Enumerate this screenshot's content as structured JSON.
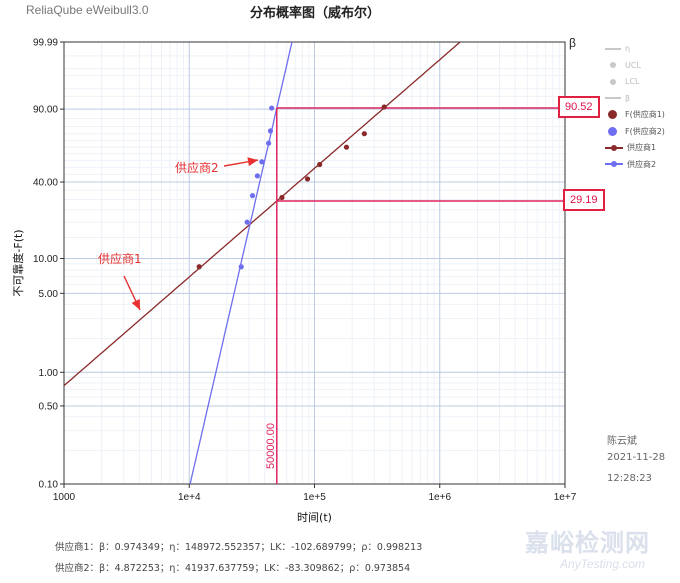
{
  "app": {
    "title": "ReliaQube eWeibull3.0"
  },
  "colors": {
    "supplier1": "#8b2a2a",
    "supplier2": "#6e6ef0",
    "marker": "#e0245e",
    "muted": "#c8c8c8"
  },
  "chart_data": {
    "type": "scatter",
    "title": "分布概率图（威布尔）",
    "xlabel": "时间(t)",
    "ylabel": "不可靠度-F(t)",
    "right_axis_label": "β",
    "x_scale": "log",
    "y_scale": "weibull",
    "xlim": [
      1000,
      10000000
    ],
    "ylim": [
      0.1,
      99.99
    ],
    "x_ticks": [
      {
        "value": 1000,
        "label": "1000"
      },
      {
        "value": 10000,
        "label": "1e+4"
      },
      {
        "value": 100000,
        "label": "1e+5"
      },
      {
        "value": 1000000,
        "label": "1e+6"
      },
      {
        "value": 10000000,
        "label": "1e+7"
      }
    ],
    "y_ticks": [
      {
        "value": 0.1,
        "label": "0.10"
      },
      {
        "value": 0.5,
        "label": "0.50"
      },
      {
        "value": 1,
        "label": "1.00"
      },
      {
        "value": 5,
        "label": "5.00"
      },
      {
        "value": 10,
        "label": "10.00"
      },
      {
        "value": 40,
        "label": "40.00"
      },
      {
        "value": 90,
        "label": "90.00"
      },
      {
        "value": 99.99,
        "label": "99.99"
      }
    ],
    "grid": true,
    "series": [
      {
        "name": "供应商1",
        "points_label": "F(供应商1)",
        "color": "#8b2a2a",
        "beta": 0.974349,
        "eta": 148972.552357,
        "points": [
          [
            12000,
            8.5
          ],
          [
            55000,
            31
          ],
          [
            88000,
            42
          ],
          [
            110000,
            52
          ],
          [
            180000,
            65
          ],
          [
            250000,
            75
          ],
          [
            360000,
            91
          ]
        ]
      },
      {
        "name": "供应商2",
        "points_label": "F(供应商2)",
        "color": "#6e6ef0",
        "beta": 4.872253,
        "eta": 41937.637759,
        "points": [
          [
            26000,
            8.5
          ],
          [
            29000,
            20
          ],
          [
            32000,
            32
          ],
          [
            35000,
            44
          ],
          [
            38000,
            54
          ],
          [
            43000,
            68
          ],
          [
            44500,
            77
          ],
          [
            45500,
            90.5
          ]
        ]
      }
    ],
    "marker": {
      "x": 50000,
      "x_label": "50000.00",
      "y_values": [
        90.52,
        29.19
      ],
      "y_labels": [
        "90.52",
        "29.19"
      ]
    },
    "annotations": [
      {
        "text": "供应商2",
        "target": "供应商2"
      },
      {
        "text": "供应商1",
        "target": "供应商1"
      }
    ]
  },
  "legend": {
    "items": [
      {
        "label": "η",
        "kind": "line",
        "muted": true
      },
      {
        "label": "UCL",
        "kind": "dot",
        "muted": true
      },
      {
        "label": "LCL",
        "kind": "dot",
        "muted": true
      },
      {
        "label": "β",
        "kind": "line",
        "muted": true
      },
      {
        "label": "F(供应商1)",
        "kind": "bigdot",
        "series": 0
      },
      {
        "label": "F(供应商2)",
        "kind": "bigdot",
        "series": 1
      },
      {
        "label": "供应商1",
        "kind": "linedot",
        "series": 0
      },
      {
        "label": "供应商2",
        "kind": "linedot",
        "series": 1
      }
    ]
  },
  "meta": {
    "author": "陈云斌",
    "date": "2021-11-28",
    "time": "12:28:23"
  },
  "params": [
    "供应商1：β：0.974349；η：148972.552357；LK：-102.689799；ρ：0.998213",
    "供应商2：β：4.872253；η：41937.637759；LK：-83.309862；ρ：0.973854"
  ],
  "watermark": {
    "cn": "嘉峪检测网",
    "en": "AnyTesting.com"
  }
}
